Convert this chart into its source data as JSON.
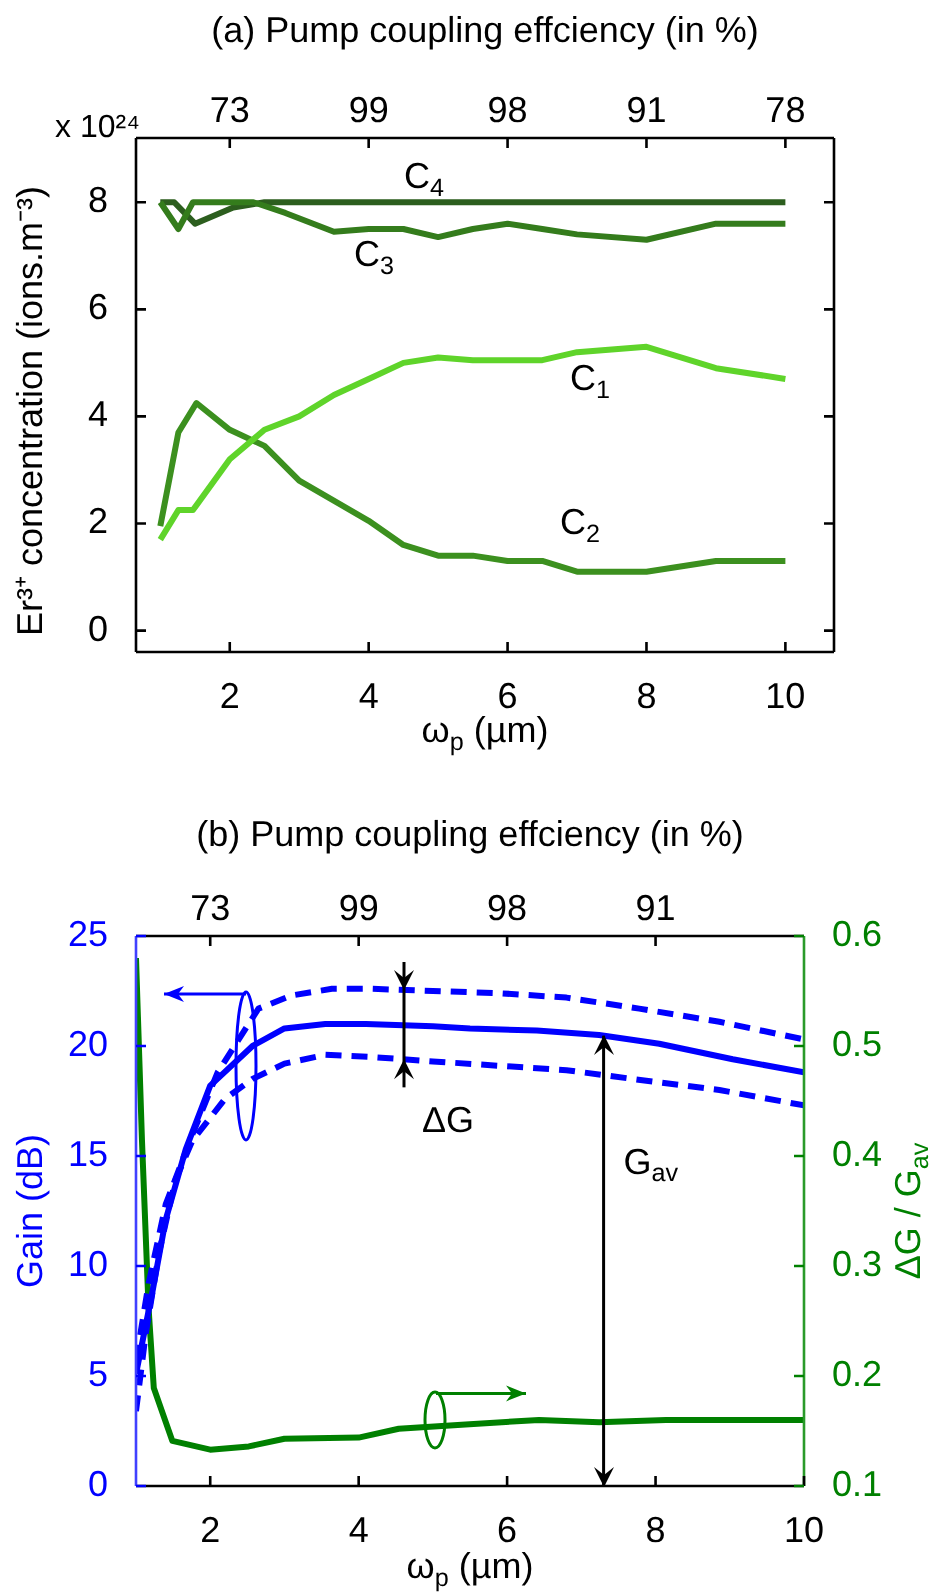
{
  "chart_data": [
    {
      "type": "line",
      "title": "(a) Pump coupling effciency (in %)",
      "xlabel": "ω$_{p}$ (µm)",
      "ylabel": "Er³⁺ concentration (ions.m⁻³)",
      "marker": "none",
      "line_style": "solid",
      "xlim": [
        0.65,
        10.7
      ],
      "xticks": [
        2,
        4,
        6,
        8,
        10
      ],
      "ylim": [
        -0.4,
        9.2
      ],
      "yticks": [
        0,
        2,
        4,
        6,
        8
      ],
      "annotations": [
        "73",
        "99",
        "98",
        "91",
        "78",
        "x 10²⁴",
        "C$_{4}$",
        "C$_{3}$",
        "C$_{1}$",
        "C$_{2}$"
      ],
      "series": [
        {
          "color": "#5fd42a",
          "x": [
            1,
            1.26,
            1.47,
            2,
            2.5,
            3,
            3.5,
            4,
            4.5,
            5,
            5.5,
            6,
            6.5,
            7,
            8,
            9,
            10
          ],
          "values": [
            1.7,
            2.25,
            2.25,
            3.2,
            3.75,
            4.0,
            4.4,
            4.7,
            5.0,
            5.1,
            5.05,
            5.05,
            5.05,
            5.2,
            5.3,
            4.9,
            4.7
          ]
        },
        {
          "color": "#3c901f",
          "x": [
            1,
            1.26,
            1.52,
            2,
            2.5,
            3,
            4,
            4.5,
            5,
            5.5,
            6,
            6.5,
            7,
            8,
            9,
            10
          ],
          "values": [
            1.95,
            3.7,
            4.25,
            3.75,
            3.45,
            2.8,
            2.05,
            1.6,
            1.4,
            1.4,
            1.3,
            1.3,
            1.1,
            1.1,
            1.3,
            1.3
          ]
        },
        {
          "color": "#347c1c",
          "x": [
            1,
            1.26,
            1.47,
            2.34,
            2.8,
            3.5,
            4,
            4.5,
            5,
            5.5,
            6,
            6.5,
            7,
            8,
            9,
            10
          ],
          "values": [
            8,
            7.5,
            8,
            8,
            7.8,
            7.45,
            7.5,
            7.5,
            7.35,
            7.5,
            7.6,
            7.5,
            7.4,
            7.3,
            7.6,
            7.6
          ]
        },
        {
          "color": "#2c5e1e",
          "x": [
            1,
            1.2,
            1.5,
            2.05,
            2.5,
            10
          ],
          "values": [
            8,
            8,
            7.6,
            7.9,
            8,
            8
          ]
        }
      ]
    },
    {
      "type": "line",
      "title": "(b) Pump coupling effciency (in %)",
      "xlabel": "ω$_{p}$ (µm)",
      "ylabel": "Gain (dB)",
      "y2label": "ΔG / G$_{av}$",
      "marker": "none",
      "xlim": [
        1,
        10
      ],
      "xticks": [
        2,
        4,
        6,
        8,
        10
      ],
      "ylim": [
        0,
        25
      ],
      "yticks": [
        0,
        5,
        10,
        15,
        20,
        25
      ],
      "y2lim": [
        0.1,
        0.6
      ],
      "y2ticks": [
        0.1,
        0.2,
        0.3,
        0.4,
        0.5,
        0.6
      ],
      "annotations": [
        "73",
        "99",
        "98",
        "91",
        "ΔG"
      ],
      "ref_lines": [
        {
          "axis": "x",
          "value": 7.3,
          "label": "G$_{av}$",
          "color": "#000000"
        }
      ],
      "series": [
        {
          "color": "#0000ff",
          "line_style": "solid",
          "x": [
            1,
            1.22,
            1.4,
            1.67,
            2,
            2.57,
            3,
            3.55,
            4.1,
            5,
            5.5,
            6.4,
            7.24,
            8.05,
            9.04,
            10
          ],
          "values": [
            5.1,
            8.8,
            12.1,
            15.3,
            18.2,
            20.0,
            20.8,
            21.0,
            21.0,
            20.9,
            20.8,
            20.7,
            20.5,
            20.1,
            19.4,
            18.8
          ]
        },
        {
          "color": "#0000ff",
          "line_style": "dashed",
          "x": [
            1,
            1.17,
            1.4,
            1.75,
            2.1,
            2.65,
            3.1,
            3.64,
            4.18,
            5,
            5.9,
            6.8,
            7.78,
            8.86,
            10
          ],
          "values": [
            5.7,
            9.2,
            12.8,
            15.9,
            18.8,
            21.7,
            22.3,
            22.6,
            22.6,
            22.5,
            22.4,
            22.2,
            21.7,
            21.1,
            20.3
          ]
        },
        {
          "color": "#0000ff",
          "line_style": "dashed",
          "x": [
            1,
            1.13,
            1.31,
            1.53,
            1.76,
            2.2,
            2.57,
            3,
            3.55,
            4.18,
            5,
            5.9,
            6.8,
            7.7,
            8.86,
            10
          ],
          "values": [
            3.4,
            6.9,
            10.6,
            13.9,
            15.7,
            17.6,
            18.5,
            19.2,
            19.6,
            19.5,
            19.3,
            19.1,
            18.9,
            18.5,
            18.0,
            17.3
          ]
        },
        {
          "color": "#008000",
          "line_style": "solid",
          "axis": "y2",
          "x": [
            1,
            1.08,
            1.17,
            1.24,
            1.49,
            2,
            2.52,
            3,
            4,
            4.54,
            5.44,
            6.43,
            7.24,
            8.14,
            10
          ],
          "values": [
            0.58,
            0.415,
            0.261,
            0.189,
            0.141,
            0.133,
            0.136,
            0.143,
            0.144,
            0.152,
            0.156,
            0.16,
            0.158,
            0.16,
            0.16
          ]
        }
      ]
    }
  ]
}
